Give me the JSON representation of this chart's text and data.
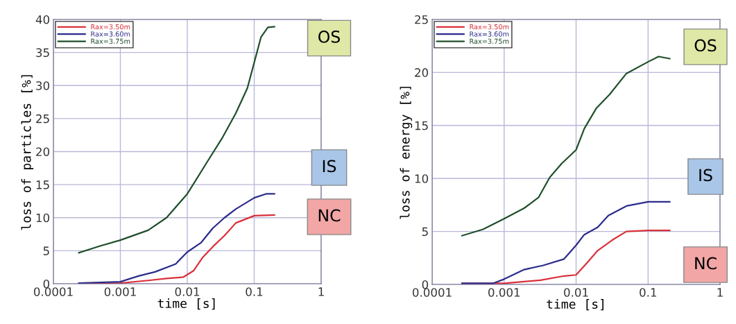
{
  "chart_data": [
    {
      "type": "line",
      "xlabel": "time [s]",
      "ylabel": "loss of particles [%]",
      "log": "x",
      "grid": true,
      "legend": "top left",
      "xlim": [
        0.0001,
        1
      ],
      "xticks": [
        0.0001,
        0.001,
        0.01,
        0.1,
        1
      ],
      "ylim": [
        0,
        40
      ],
      "yticks": [
        0,
        5,
        10,
        15,
        20,
        25,
        30,
        35,
        40
      ],
      "annotations": [
        "OS",
        "IS",
        "NC"
      ],
      "series": [
        {
          "name": "Rax=3.50m",
          "color": "#d9303a",
          "x": [
            0.00024,
            0.001,
            0.0026,
            0.0049,
            0.0087,
            0.0125,
            0.017,
            0.024,
            0.036,
            0.053,
            0.1,
            0.2
          ],
          "values": [
            0,
            0.1,
            0.5,
            0.8,
            1.0,
            2.0,
            4.0,
            5.6,
            7.3,
            9.2,
            10.3,
            10.4
          ]
        },
        {
          "name": "Rax=3.60m",
          "color": "#2c2c8c",
          "x": [
            0.00024,
            0.001,
            0.0019,
            0.0033,
            0.0067,
            0.01,
            0.016,
            0.024,
            0.036,
            0.053,
            0.1,
            0.15,
            0.2
          ],
          "values": [
            0.1,
            0.3,
            1.2,
            1.8,
            3.0,
            4.8,
            6.2,
            8.4,
            10,
            11.3,
            13.0,
            13.6,
            13.6
          ]
        },
        {
          "name": "Rax=3.75m",
          "color": "#1f4f2a",
          "x": [
            0.00024,
            0.00049,
            0.001,
            0.0026,
            0.0049,
            0.01,
            0.02,
            0.033,
            0.053,
            0.079,
            0.1,
            0.126,
            0.16,
            0.2
          ],
          "values": [
            4.7,
            5.7,
            6.6,
            8.1,
            10,
            13.6,
            18.5,
            22,
            25.8,
            29.6,
            33.5,
            37.3,
            38.8,
            38.9
          ]
        }
      ]
    },
    {
      "type": "line",
      "xlabel": "time [s]",
      "ylabel": "loss of energy [%]",
      "log": "x",
      "grid": true,
      "legend": "top left",
      "xlim": [
        0.0001,
        1
      ],
      "xticks": [
        0.0001,
        0.001,
        0.01,
        0.1,
        1
      ],
      "ylim": [
        0,
        25
      ],
      "yticks": [
        0,
        5,
        10,
        15,
        20,
        25
      ],
      "annotations": [
        "OS",
        "IS",
        "NC"
      ],
      "series": [
        {
          "name": "Rax=3.50m",
          "color": "#d9303a",
          "x": [
            0.00026,
            0.001,
            0.0032,
            0.0068,
            0.01,
            0.014,
            0.02,
            0.032,
            0.05,
            0.1,
            0.2
          ],
          "values": [
            0.1,
            0.1,
            0.4,
            0.8,
            0.9,
            2.0,
            3.2,
            4.2,
            5.0,
            5.1,
            5.1
          ]
        },
        {
          "name": "Rax=3.60m",
          "color": "#2c2c8c",
          "x": [
            0.00026,
            0.0007,
            0.001,
            0.0019,
            0.0035,
            0.0068,
            0.01,
            0.013,
            0.02,
            0.028,
            0.05,
            0.1,
            0.2
          ],
          "values": [
            0.1,
            0.1,
            0.5,
            1.4,
            1.8,
            2.4,
            3.7,
            4.7,
            5.4,
            6.5,
            7.4,
            7.8,
            7.8
          ]
        },
        {
          "name": "Rax=3.75m",
          "color": "#1f4f2a",
          "x": [
            0.00026,
            0.00051,
            0.001,
            0.0019,
            0.003,
            0.0043,
            0.0063,
            0.01,
            0.013,
            0.019,
            0.029,
            0.05,
            0.1,
            0.14,
            0.2
          ],
          "values": [
            4.6,
            5.2,
            6.2,
            7.2,
            8.2,
            10.1,
            11.4,
            12.7,
            14.7,
            16.6,
            17.9,
            19.9,
            21.0,
            21.5,
            21.3
          ]
        }
      ]
    }
  ]
}
